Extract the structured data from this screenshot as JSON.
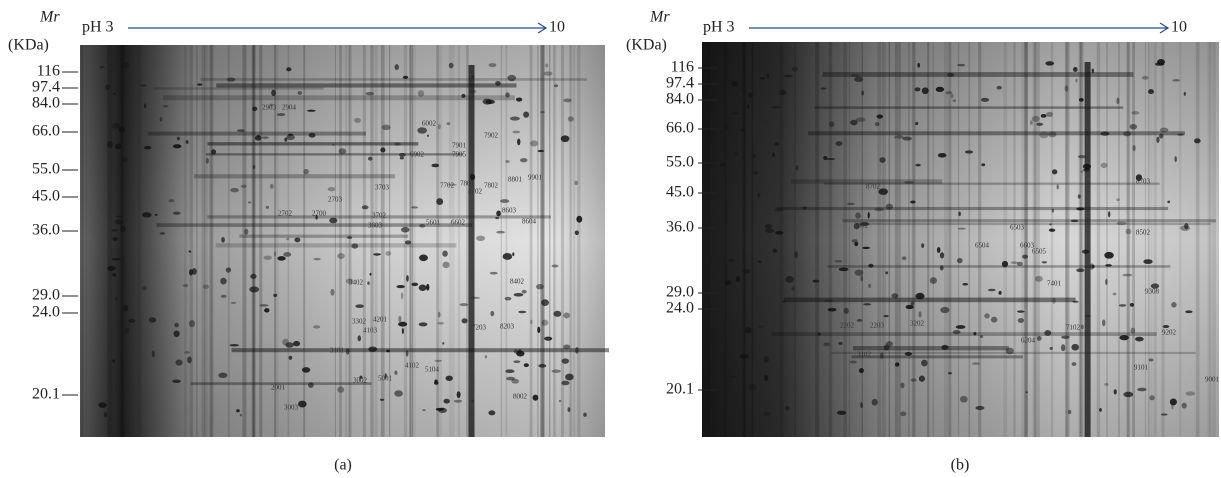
{
  "panels": [
    {
      "axis_label": "Mr",
      "unit_label": "(KDa)",
      "ph_start": "pH 3",
      "ph_end": "10",
      "markers": [
        "116",
        "97.4",
        "84.0",
        "66.0",
        "55.0",
        "45.0",
        "36.0",
        "29.0",
        "24.0",
        "20.1"
      ],
      "spots": [
        "2903",
        "2904",
        "6002",
        "7902",
        "7901",
        "7905",
        "6902",
        "9901",
        "8801",
        "7802",
        "7801",
        "8702",
        "7702",
        "3703",
        "2703",
        "2702",
        "2700",
        "3702",
        "3603",
        "5601",
        "6602",
        "8603",
        "8604",
        "8402",
        "3402",
        "3302",
        "4201",
        "4103",
        "8203",
        "7203",
        "3101",
        "4102",
        "5104",
        "3002",
        "5001",
        "2001",
        "8002",
        "3003"
      ],
      "caption": "(a)"
    },
    {
      "axis_label": "Mr",
      "unit_label": "(KDa)",
      "ph_start": "pH 3",
      "ph_end": "10",
      "markers": [
        "116",
        "97.4",
        "84.0",
        "66.0",
        "55.0",
        "45.0",
        "36.0",
        "29.0",
        "24.0",
        "20.1"
      ],
      "spots": [
        "8702",
        "8703",
        "3602",
        "6503",
        "8502",
        "6504",
        "6603",
        "6505",
        "7401",
        "9308",
        "2202",
        "2203",
        "3202",
        "7102",
        "9202",
        "6204",
        "3102",
        "9101",
        "9001"
      ],
      "caption": "(b)"
    }
  ]
}
